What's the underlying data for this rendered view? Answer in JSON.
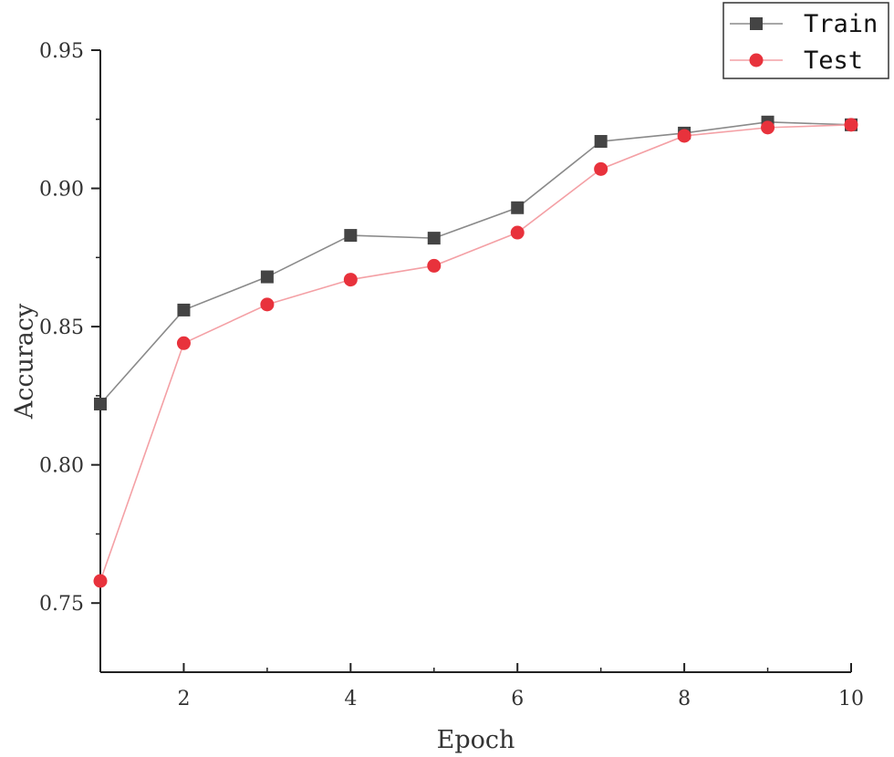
{
  "chart_data": {
    "type": "line",
    "xlabel": "Epoch",
    "ylabel": "Accuracy",
    "x": [
      1,
      2,
      3,
      4,
      5,
      6,
      7,
      8,
      9,
      10
    ],
    "xlim": [
      1,
      10
    ],
    "ylim": [
      0.725,
      0.95
    ],
    "x_ticks": [
      2,
      4,
      6,
      8,
      10
    ],
    "x_tick_labels": [
      "2",
      "4",
      "6",
      "8",
      "10"
    ],
    "y_ticks": [
      0.75,
      0.8,
      0.85,
      0.9,
      0.95
    ],
    "y_tick_labels": [
      "0.75",
      "0.80",
      "0.85",
      "0.90",
      "0.95"
    ],
    "grid": false,
    "legend_position": "top-right",
    "series": [
      {
        "name": "Train",
        "marker": "square",
        "color": "#444444",
        "line_color": "#8a8a8a",
        "values": [
          0.822,
          0.856,
          0.868,
          0.883,
          0.882,
          0.893,
          0.917,
          0.92,
          0.924,
          0.923
        ]
      },
      {
        "name": "Test",
        "marker": "circle",
        "color": "#e8323c",
        "line_color": "#f4a0a5",
        "values": [
          0.758,
          0.844,
          0.858,
          0.867,
          0.872,
          0.884,
          0.907,
          0.919,
          0.922,
          0.923
        ]
      }
    ]
  }
}
